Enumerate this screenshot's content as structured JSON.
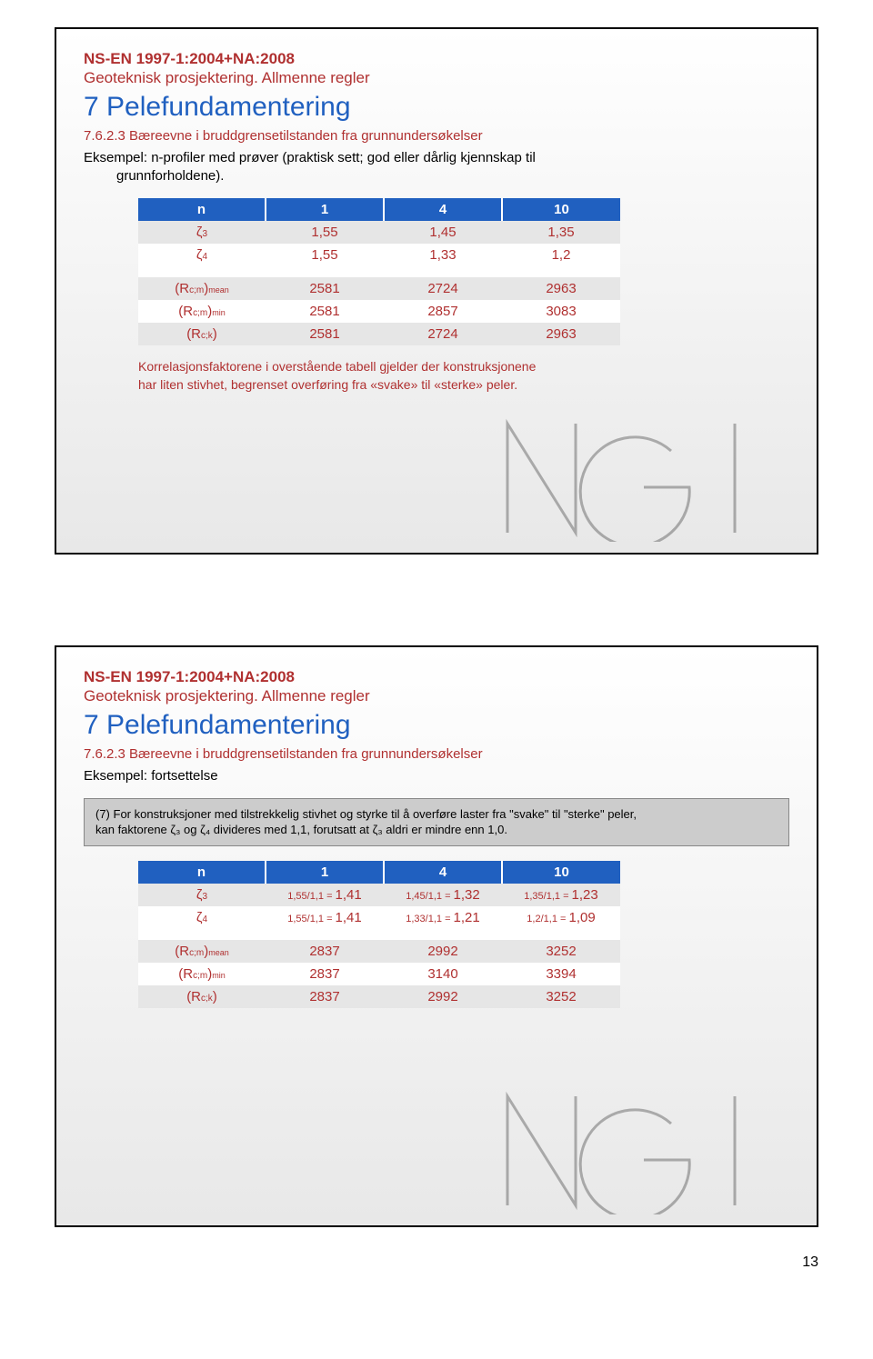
{
  "slide1": {
    "standard": "NS-EN 1997-1:2004+NA:2008",
    "subtitle": "Geoteknisk prosjektering. Allmenne regler",
    "title": "7 Pelefundamentering",
    "section": "7.6.2.3 Bæreevne i bruddgrensetilstanden fra grunnundersøkelser",
    "body_line1": "Eksempel: n-profiler med prøver (praktisk sett; god eller dårlig kjennskap til",
    "body_line2": "grunnforholdene).",
    "table": {
      "header": [
        "n",
        "1",
        "4",
        "10"
      ],
      "rows": [
        {
          "label_html": "ζ<span class='sub'>3</span>",
          "cells": [
            "1,55",
            "1,45",
            "1,35"
          ],
          "shade": true
        },
        {
          "label_html": "ζ<span class='sub'>4</span>",
          "cells": [
            "1,55",
            "1,33",
            "1,2"
          ],
          "shade": false
        },
        {
          "spacer": true
        },
        {
          "label_html": "(R<span class='sub'>c;m</span>)<span class='subtxt'>mean</span>",
          "cells": [
            "2581",
            "2724",
            "2963"
          ],
          "shade": true
        },
        {
          "label_html": "(R<span class='sub'>c;m</span>)<span class='subtxt'>min</span>",
          "cells": [
            "2581",
            "2857",
            "3083"
          ],
          "shade": false
        },
        {
          "label_html": "(R<span class='sub'>c;k</span>)",
          "cells": [
            "2581",
            "2724",
            "2963"
          ],
          "shade": true
        }
      ]
    },
    "note_line1": "Korrelasjonsfaktorene i overstående tabell gjelder der konstruksjonene",
    "note_line2": "har liten stivhet, begrenset overføring fra «svake» til «sterke» peler."
  },
  "slide2": {
    "standard": "NS-EN 1997-1:2004+NA:2008",
    "subtitle": "Geoteknisk prosjektering. Allmenne regler",
    "title": "7 Pelefundamentering",
    "section": "7.6.2.3 Bæreevne i bruddgrensetilstanden fra grunnundersøkelser",
    "body": "Eksempel: fortsettelse",
    "greybox_line1": "(7) For konstruksjoner med tilstrekkelig stivhet og styrke til å overføre laster fra \"svake\" til \"sterke\" peler,",
    "greybox_line2": "kan faktorene ζ₃ og ζ₄ divideres med 1,1, forutsatt at ζ₃ aldri er mindre enn 1,0.",
    "table": {
      "header": [
        "n",
        "1",
        "4",
        "10"
      ],
      "rows": [
        {
          "label_html": "ζ<span class='sub'>3</span>",
          "cells": [
            {
              "calc": "1,55/1,1 =",
              "res": "1,41"
            },
            {
              "calc": "1,45/1,1 =",
              "res": "1,32"
            },
            {
              "calc": "1,35/1,1 =",
              "res": "1,23"
            }
          ],
          "shade": true,
          "calc": true
        },
        {
          "label_html": "ζ<span class='sub'>4</span>",
          "cells": [
            {
              "calc": "1,55/1,1 =",
              "res": "1,41"
            },
            {
              "calc": "1,33/1,1 =",
              "res": "1,21"
            },
            {
              "calc": "1,2/1,1 =",
              "res": "1,09"
            }
          ],
          "shade": false,
          "calc": true
        },
        {
          "spacer": true
        },
        {
          "label_html": "(R<span class='sub'>c;m</span>)<span class='subtxt'>mean</span>",
          "cells": [
            "2837",
            "2992",
            "3252"
          ],
          "shade": true
        },
        {
          "label_html": "(R<span class='sub'>c;m</span>)<span class='subtxt'>min</span>",
          "cells": [
            "2837",
            "3140",
            "3394"
          ],
          "shade": false
        },
        {
          "label_html": "(R<span class='sub'>c;k</span>)",
          "cells": [
            "2837",
            "2992",
            "3252"
          ],
          "shade": true
        }
      ]
    }
  },
  "page_number": "13"
}
